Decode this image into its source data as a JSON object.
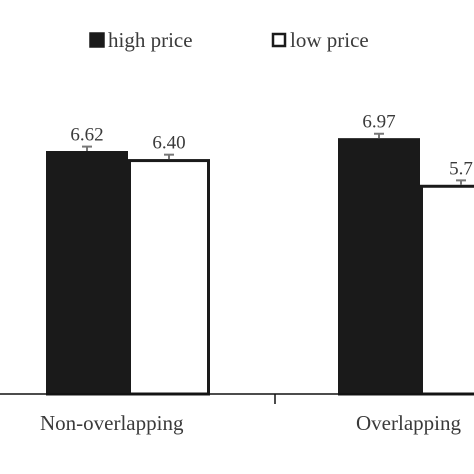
{
  "chart_data": {
    "type": "bar",
    "categories": [
      "Non-overlapping",
      "Overlapping"
    ],
    "series": [
      {
        "name": "high price",
        "values": [
          6.62,
          6.97
        ],
        "value_labels": [
          "6.62",
          "6.97"
        ],
        "fill": "#1a1a1a",
        "error": [
          0.12,
          0.12
        ]
      },
      {
        "name": "low price",
        "values": [
          6.4,
          5.7
        ],
        "value_labels": [
          "6.40",
          "5.7"
        ],
        "fill": "#ffffff",
        "error": [
          0.12,
          0.12
        ]
      }
    ],
    "legend_position": "top",
    "grid": false,
    "colors": {
      "high_price": "#1a1a1a",
      "low_price": "#ffffff",
      "outline": "#1a1a1a",
      "error_bar": "#777777",
      "text": "#3a3a3a",
      "axis": "#111111"
    }
  }
}
